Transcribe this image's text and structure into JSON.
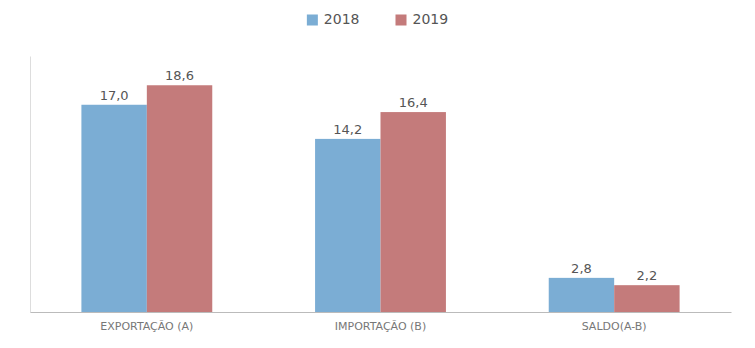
{
  "chart_data": {
    "type": "bar",
    "categories": [
      "EXPORTAÇÃO  (A)",
      "IMPORTAÇÃO  (B)",
      "SALDO(A-B)"
    ],
    "series": [
      {
        "name": "2018",
        "color": "#7badd4",
        "values": [
          17.0,
          14.2,
          2.8
        ],
        "value_labels": [
          "17,0",
          "14,2",
          "2,8"
        ]
      },
      {
        "name": "2019",
        "color": "#c47b7b",
        "values": [
          18.6,
          16.4,
          2.2
        ],
        "value_labels": [
          "18,6",
          "16,4",
          "2,2"
        ]
      }
    ],
    "ylim": [
      0,
      21
    ],
    "yticks": [],
    "grid": false,
    "legend": "top",
    "data_labels": true,
    "tick_labels": "x"
  }
}
